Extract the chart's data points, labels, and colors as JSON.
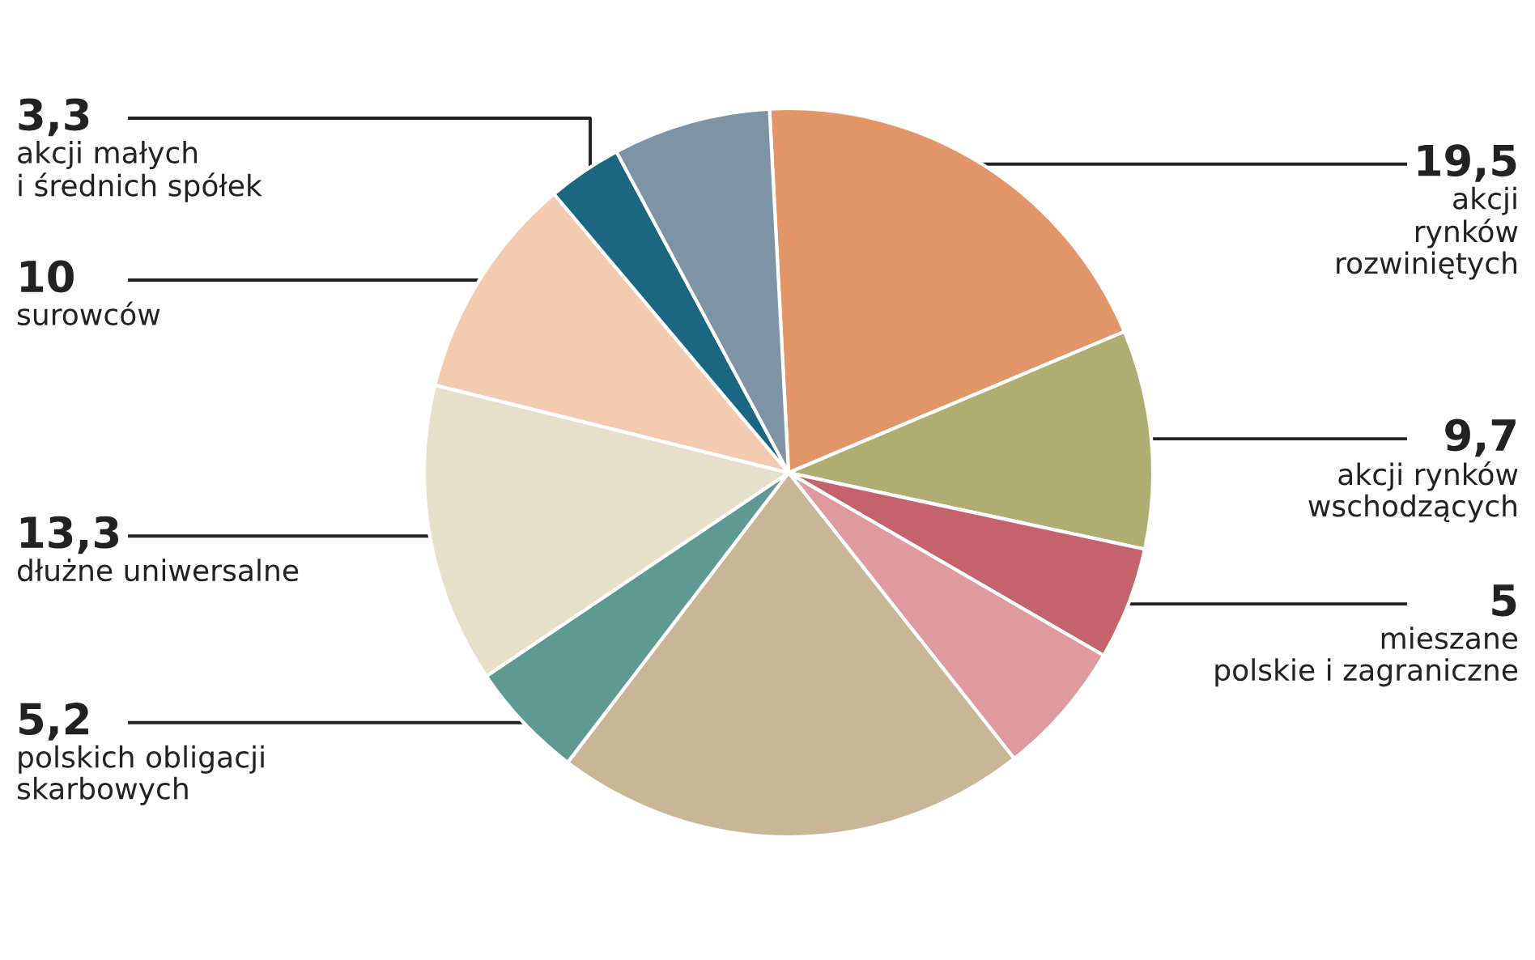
{
  "chart_data": {
    "type": "pie",
    "categories": [
      "akcji\nrynków\nrozwiniętych",
      "akcji rynków\nwschodzących",
      "mieszane\npolskie i zagraniczne",
      null,
      null,
      "polskich obligacji\nskarbowych",
      "dłużne uniwersalne",
      "surowców",
      "akcji małych\ni średnich spółek",
      null
    ],
    "values": [
      19.5,
      9.7,
      5,
      6,
      21,
      5.2,
      13.3,
      10,
      3.3,
      7
    ],
    "value_labels": [
      "19,5",
      "9,7",
      "5",
      null,
      null,
      "5,2",
      "13,3",
      "10",
      "3,3",
      null
    ],
    "colors": [
      "#e3956a",
      "#b0ad72",
      "#c4636b",
      "#de9a9e",
      "#c9b696",
      "#5e9a91",
      "#e6e0c8",
      "#f2cbb0",
      "#1b6781",
      "#7d93a6"
    ]
  }
}
